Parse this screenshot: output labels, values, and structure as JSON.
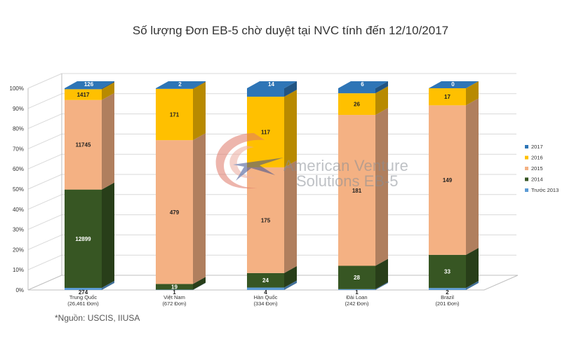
{
  "chart_data": {
    "type": "bar",
    "stacked": "percent",
    "title": "Số lượng Đơn EB-5 chờ duyệt tại NVC tính đến 12/10/2017",
    "xlabel": "",
    "ylabel": "",
    "ylim": [
      0,
      100
    ],
    "y_ticks": [
      "0%",
      "10%",
      "20%",
      "30%",
      "40%",
      "50%",
      "60%",
      "70%",
      "80%",
      "90%",
      "100%"
    ],
    "categories": [
      "Trung Quốc",
      "Việt Nam",
      "Hàn Quốc",
      "Đài Loan",
      "Brazil"
    ],
    "category_subtitles": [
      "(26,461 Đơn)",
      "(672 Đơn)",
      "(334 Đơn)",
      "(242 Đơn)",
      "(201 Đơn)"
    ],
    "series": [
      {
        "name": "Trước 2013",
        "color": "#5b9bd5",
        "values": [
          274,
          1,
          4,
          1,
          2
        ]
      },
      {
        "name": "2014",
        "color": "#375623",
        "values": [
          12899,
          19,
          24,
          28,
          33
        ]
      },
      {
        "name": "2015",
        "color": "#f4b183",
        "values": [
          11745,
          479,
          175,
          181,
          149
        ]
      },
      {
        "name": "2016",
        "color": "#ffc000",
        "values": [
          1417,
          171,
          117,
          26,
          17
        ]
      },
      {
        "name": "2017",
        "color": "#2e75b6",
        "values": [
          126,
          2,
          14,
          6,
          0
        ]
      }
    ],
    "legend": {
      "position": "right"
    },
    "grid": true
  },
  "watermark": {
    "line1": "American Venture",
    "line2": "Solutions EB-5"
  },
  "source_note": "*Nguồn: USCIS, IIUSA"
}
